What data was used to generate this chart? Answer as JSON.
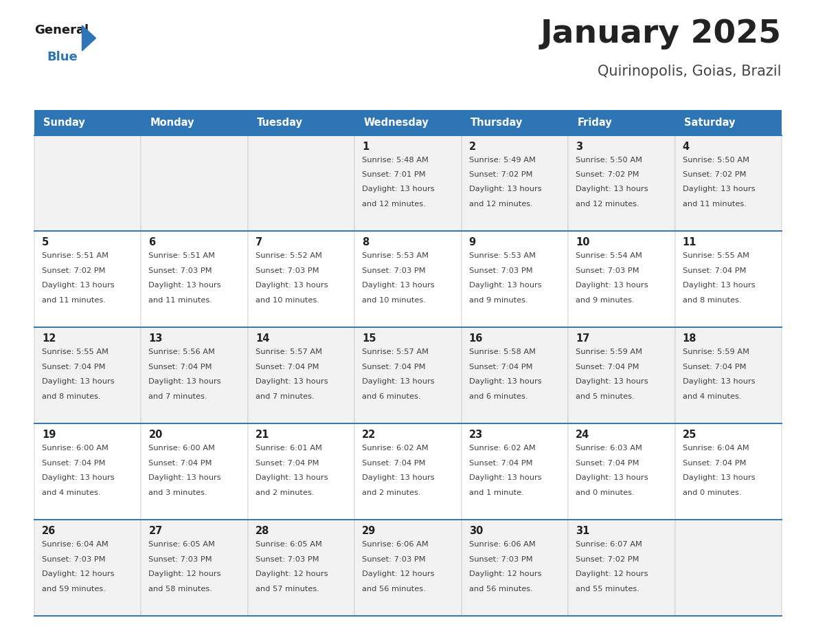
{
  "title": "January 2025",
  "subtitle": "Quirinopolis, Goias, Brazil",
  "days_of_week": [
    "Sunday",
    "Monday",
    "Tuesday",
    "Wednesday",
    "Thursday",
    "Friday",
    "Saturday"
  ],
  "header_bg": "#2E75B6",
  "header_text_color": "#FFFFFF",
  "row_bg_odd": "#F2F2F2",
  "row_bg_even": "#FFFFFF",
  "divider_color": "#2E75B6",
  "cell_text_color": "#404040",
  "day_num_color": "#222222",
  "title_color": "#222222",
  "subtitle_color": "#444444",
  "logo_general_color": "#1A1A1A",
  "logo_blue_color": "#2E75B6",
  "calendar": [
    [
      {
        "day": "",
        "sunrise": "",
        "sunset": "",
        "daylight": ""
      },
      {
        "day": "",
        "sunrise": "",
        "sunset": "",
        "daylight": ""
      },
      {
        "day": "",
        "sunrise": "",
        "sunset": "",
        "daylight": ""
      },
      {
        "day": "1",
        "sunrise": "5:48 AM",
        "sunset": "7:01 PM",
        "daylight": "13 hours\nand 12 minutes."
      },
      {
        "day": "2",
        "sunrise": "5:49 AM",
        "sunset": "7:02 PM",
        "daylight": "13 hours\nand 12 minutes."
      },
      {
        "day": "3",
        "sunrise": "5:50 AM",
        "sunset": "7:02 PM",
        "daylight": "13 hours\nand 12 minutes."
      },
      {
        "day": "4",
        "sunrise": "5:50 AM",
        "sunset": "7:02 PM",
        "daylight": "13 hours\nand 11 minutes."
      }
    ],
    [
      {
        "day": "5",
        "sunrise": "5:51 AM",
        "sunset": "7:02 PM",
        "daylight": "13 hours\nand 11 minutes."
      },
      {
        "day": "6",
        "sunrise": "5:51 AM",
        "sunset": "7:03 PM",
        "daylight": "13 hours\nand 11 minutes."
      },
      {
        "day": "7",
        "sunrise": "5:52 AM",
        "sunset": "7:03 PM",
        "daylight": "13 hours\nand 10 minutes."
      },
      {
        "day": "8",
        "sunrise": "5:53 AM",
        "sunset": "7:03 PM",
        "daylight": "13 hours\nand 10 minutes."
      },
      {
        "day": "9",
        "sunrise": "5:53 AM",
        "sunset": "7:03 PM",
        "daylight": "13 hours\nand 9 minutes."
      },
      {
        "day": "10",
        "sunrise": "5:54 AM",
        "sunset": "7:03 PM",
        "daylight": "13 hours\nand 9 minutes."
      },
      {
        "day": "11",
        "sunrise": "5:55 AM",
        "sunset": "7:04 PM",
        "daylight": "13 hours\nand 8 minutes."
      }
    ],
    [
      {
        "day": "12",
        "sunrise": "5:55 AM",
        "sunset": "7:04 PM",
        "daylight": "13 hours\nand 8 minutes."
      },
      {
        "day": "13",
        "sunrise": "5:56 AM",
        "sunset": "7:04 PM",
        "daylight": "13 hours\nand 7 minutes."
      },
      {
        "day": "14",
        "sunrise": "5:57 AM",
        "sunset": "7:04 PM",
        "daylight": "13 hours\nand 7 minutes."
      },
      {
        "day": "15",
        "sunrise": "5:57 AM",
        "sunset": "7:04 PM",
        "daylight": "13 hours\nand 6 minutes."
      },
      {
        "day": "16",
        "sunrise": "5:58 AM",
        "sunset": "7:04 PM",
        "daylight": "13 hours\nand 6 minutes."
      },
      {
        "day": "17",
        "sunrise": "5:59 AM",
        "sunset": "7:04 PM",
        "daylight": "13 hours\nand 5 minutes."
      },
      {
        "day": "18",
        "sunrise": "5:59 AM",
        "sunset": "7:04 PM",
        "daylight": "13 hours\nand 4 minutes."
      }
    ],
    [
      {
        "day": "19",
        "sunrise": "6:00 AM",
        "sunset": "7:04 PM",
        "daylight": "13 hours\nand 4 minutes."
      },
      {
        "day": "20",
        "sunrise": "6:00 AM",
        "sunset": "7:04 PM",
        "daylight": "13 hours\nand 3 minutes."
      },
      {
        "day": "21",
        "sunrise": "6:01 AM",
        "sunset": "7:04 PM",
        "daylight": "13 hours\nand 2 minutes."
      },
      {
        "day": "22",
        "sunrise": "6:02 AM",
        "sunset": "7:04 PM",
        "daylight": "13 hours\nand 2 minutes."
      },
      {
        "day": "23",
        "sunrise": "6:02 AM",
        "sunset": "7:04 PM",
        "daylight": "13 hours\nand 1 minute."
      },
      {
        "day": "24",
        "sunrise": "6:03 AM",
        "sunset": "7:04 PM",
        "daylight": "13 hours\nand 0 minutes."
      },
      {
        "day": "25",
        "sunrise": "6:04 AM",
        "sunset": "7:04 PM",
        "daylight": "13 hours\nand 0 minutes."
      }
    ],
    [
      {
        "day": "26",
        "sunrise": "6:04 AM",
        "sunset": "7:03 PM",
        "daylight": "12 hours\nand 59 minutes."
      },
      {
        "day": "27",
        "sunrise": "6:05 AM",
        "sunset": "7:03 PM",
        "daylight": "12 hours\nand 58 minutes."
      },
      {
        "day": "28",
        "sunrise": "6:05 AM",
        "sunset": "7:03 PM",
        "daylight": "12 hours\nand 57 minutes."
      },
      {
        "day": "29",
        "sunrise": "6:06 AM",
        "sunset": "7:03 PM",
        "daylight": "12 hours\nand 56 minutes."
      },
      {
        "day": "30",
        "sunrise": "6:06 AM",
        "sunset": "7:03 PM",
        "daylight": "12 hours\nand 56 minutes."
      },
      {
        "day": "31",
        "sunrise": "6:07 AM",
        "sunset": "7:02 PM",
        "daylight": "12 hours\nand 55 minutes."
      },
      {
        "day": "",
        "sunrise": "",
        "sunset": "",
        "daylight": ""
      }
    ]
  ]
}
